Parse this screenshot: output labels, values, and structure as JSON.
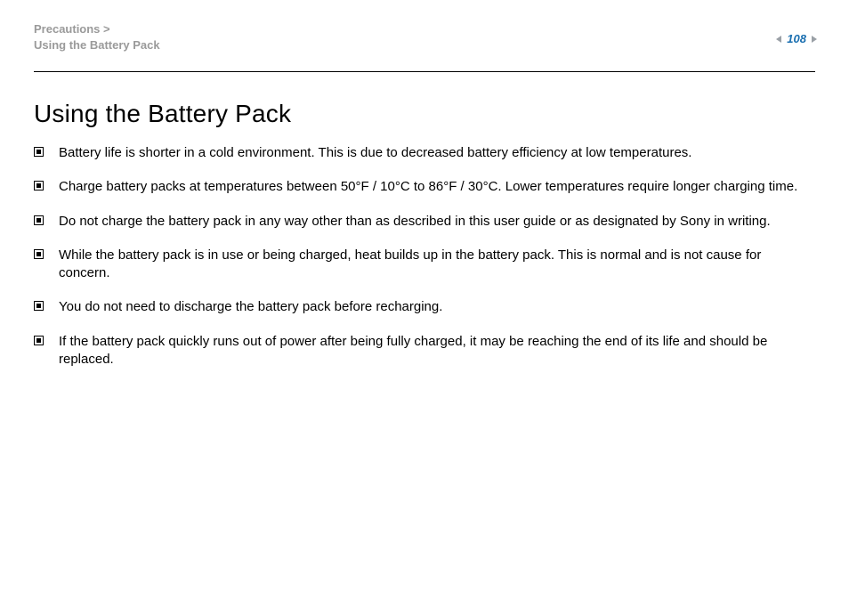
{
  "header": {
    "breadcrumb_line1": "Precautions >",
    "breadcrumb_line2": "Using the Battery Pack",
    "page_number": "108"
  },
  "main": {
    "title": "Using the Battery Pack",
    "items": [
      "Battery life is shorter in a cold environment. This is due to decreased battery efficiency at low temperatures.",
      "Charge battery packs at temperatures between 50°F / 10°C to 86°F / 30°C. Lower temperatures require longer charging time.",
      "Do not charge the battery pack in any way other than as described in this user guide or as designated by Sony in writing.",
      "While the battery pack is in use or being charged, heat builds up in the battery pack. This is normal and is not cause for concern.",
      "You do not need to discharge the battery pack before recharging.",
      "If the battery pack quickly runs out of power after being fully charged, it may be reaching the end of its life and should be replaced."
    ]
  },
  "style": {
    "breadcrumb_color": "#9a9a9a",
    "pagenum_color": "#1a6fb0",
    "divider_color": "#000000",
    "text_color": "#000000",
    "background": "#ffffff",
    "title_fontsize": 28,
    "body_fontsize": 15
  }
}
